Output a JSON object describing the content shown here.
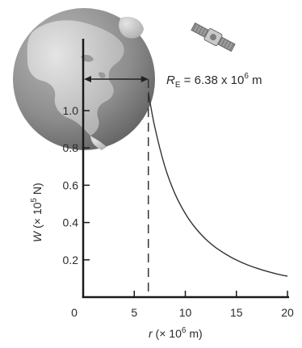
{
  "chart_data": {
    "type": "line",
    "title": "",
    "xlabel": "r (× 10⁶ m)",
    "ylabel": "W (× 10⁵ N)",
    "xlabel_parts": {
      "var": "r",
      "prefix": " (× 10",
      "exp": "6",
      "suffix": " m)"
    },
    "ylabel_parts": {
      "var": "W",
      "prefix": " (× 10",
      "exp": "5",
      "suffix": " N)"
    },
    "xlim": [
      0,
      20
    ],
    "ylim": [
      0,
      1.1
    ],
    "x_ticks": [
      0,
      5,
      10,
      15,
      20
    ],
    "x_tick_labels": [
      "0",
      "5",
      "10",
      "15",
      "20"
    ],
    "y_ticks": [
      0.2,
      0.4,
      0.6,
      0.8,
      1.0
    ],
    "y_tick_labels": [
      "0.2",
      "0.4",
      "0.6",
      "0.8",
      "1.0"
    ],
    "grid": false,
    "series": [
      {
        "x": [
          6.38,
          7,
          8,
          9,
          10,
          11,
          12,
          13,
          14,
          15,
          16,
          17,
          18,
          19,
          20
        ],
        "y": [
          1.1,
          0.914,
          0.7,
          0.553,
          0.448,
          0.37,
          0.311,
          0.265,
          0.229,
          0.199,
          0.175,
          0.155,
          0.138,
          0.124,
          0.112
        ]
      }
    ],
    "annotations": {
      "earth_radius": {
        "x": 6.38,
        "text_var": "R",
        "text_sub": "E",
        "text_mid": " = 6.38 x 10",
        "text_exp": "6",
        "text_suffix": " m"
      }
    },
    "line_color": "#333333",
    "axis_color": "#1a1a1a"
  },
  "decorations": {
    "earth_icon": "earth-globe-icon",
    "satellite_icon": "satellite-icon",
    "earth_ocean_color": "#8a8a8a",
    "earth_land_color": "#cfcfcf"
  }
}
